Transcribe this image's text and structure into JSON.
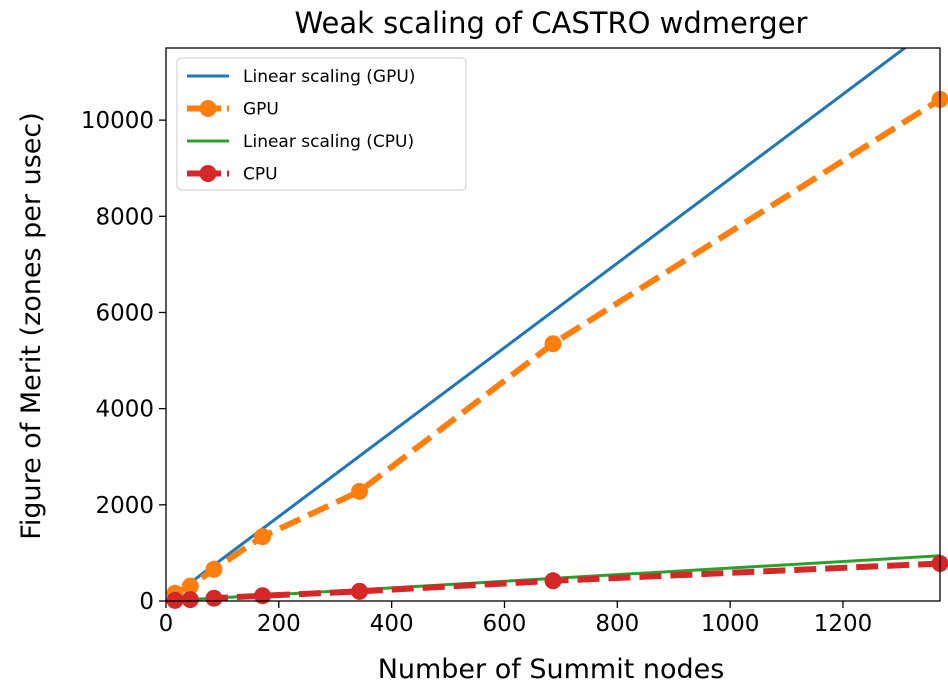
{
  "chart_data": {
    "type": "line",
    "title": "Weak scaling of CASTRO wdmerger",
    "xlabel": "Number of Summit nodes",
    "ylabel": "Figure of Merit (zones per usec)",
    "xlim": [
      0,
      1372
    ],
    "ylim": [
      0,
      11500
    ],
    "xticks": [
      0,
      200,
      400,
      600,
      800,
      1000,
      1200
    ],
    "xtick_labels": [
      "0",
      "200",
      "400",
      "600",
      "800",
      "1000",
      "1200"
    ],
    "yticks": [
      0,
      2000,
      4000,
      6000,
      8000,
      10000
    ],
    "ytick_labels": [
      "0",
      "2000",
      "4000",
      "6000",
      "8000",
      "10000"
    ],
    "grid": false,
    "legend_position": "upper-left",
    "series": [
      {
        "name": "Linear scaling (GPU)",
        "style": "solid",
        "markers": false,
        "color": "#1f77b4",
        "x": [
          0,
          1372
        ],
        "y": [
          0,
          12050
        ]
      },
      {
        "name": "GPU",
        "style": "dashed",
        "markers": true,
        "color": "#ff7f0e",
        "x": [
          16,
          43,
          85,
          171,
          343,
          686,
          1372
        ],
        "y": [
          160,
          310,
          660,
          1340,
          2280,
          5350,
          10430
        ]
      },
      {
        "name": "Linear scaling (CPU)",
        "style": "solid",
        "markers": false,
        "color": "#2ca02c",
        "x": [
          0,
          1372
        ],
        "y": [
          0,
          940
        ]
      },
      {
        "name": "CPU",
        "style": "dashed",
        "markers": true,
        "color": "#d62728",
        "x": [
          16,
          43,
          85,
          171,
          343,
          686,
          1372
        ],
        "y": [
          12,
          30,
          58,
          110,
          200,
          420,
          780
        ]
      }
    ]
  }
}
